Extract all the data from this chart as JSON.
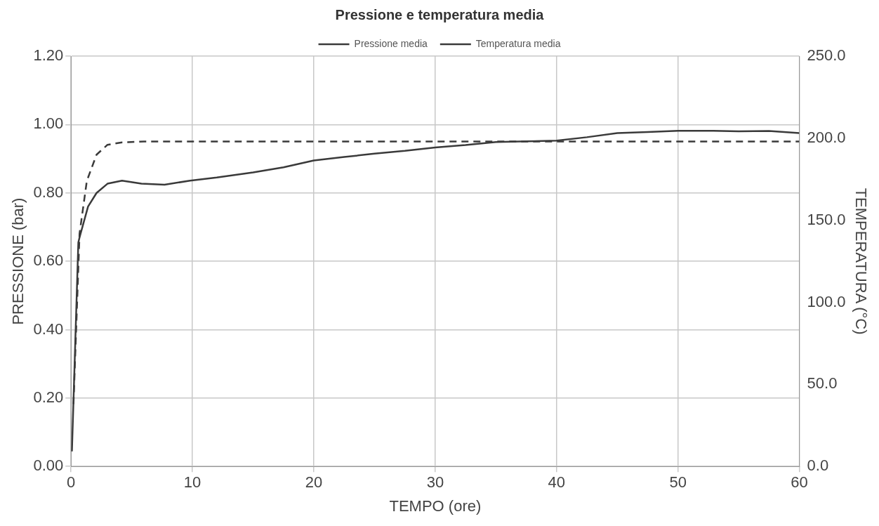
{
  "chart_data": {
    "type": "line",
    "title": "Pressione e temperatura media",
    "xlabel": "TEMPO (ore)",
    "ylabel": "PRESSIONE (bar)",
    "y2label": "TEMPERATURA (°C)",
    "legend": "top",
    "grid": true,
    "marker": "none",
    "xlim": [
      0,
      60
    ],
    "xticks": [
      0,
      10,
      20,
      30,
      40,
      50,
      60
    ],
    "ylim": [
      0,
      1.2
    ],
    "yticks": [
      {
        "value": 0,
        "label": "0.00"
      },
      {
        "value": 0.2,
        "label": "0.20"
      },
      {
        "value": 0.4,
        "label": "0.40"
      },
      {
        "value": 0.6,
        "label": "0.60"
      },
      {
        "value": 0.8,
        "label": "0.80"
      },
      {
        "value": 1,
        "label": "1.00"
      },
      {
        "value": 1.2,
        "label": "1.20"
      }
    ],
    "y2lim": [
      0,
      250
    ],
    "y2ticks": [
      {
        "value": 0,
        "label": "0.0"
      },
      {
        "value": 50,
        "label": "50.0"
      },
      {
        "value": 100,
        "label": "100.0"
      },
      {
        "value": 150,
        "label": "150.0"
      },
      {
        "value": 200,
        "label": "200.0"
      },
      {
        "value": 250,
        "label": "250.0"
      }
    ],
    "series": [
      {
        "name": "Pressione media",
        "color": "#3a3a3a",
        "line_style": "solid",
        "x": [
          0.07,
          0.6,
          0.7,
          1.4,
          2.1,
          3,
          4.2,
          5.8,
          7.7,
          9.8,
          12,
          15,
          17.5,
          20,
          22.5,
          25,
          27.5,
          30,
          32.5,
          35,
          37.5,
          40,
          42.5,
          45,
          47.5,
          50,
          52.5,
          55,
          57.5,
          60
        ],
        "values": [
          0.044,
          0.655,
          0.67,
          0.76,
          0.8,
          0.827,
          0.836,
          0.827,
          0.824,
          0.836,
          0.845,
          0.86,
          0.875,
          0.895,
          0.905,
          0.915,
          0.923,
          0.933,
          0.94,
          0.949,
          0.951,
          0.953,
          0.963,
          0.975,
          0.978,
          0.982,
          0.982,
          0.98,
          0.981,
          0.975
        ]
      },
      {
        "name": "Temperatura media",
        "color": "#3a3a3a",
        "line_style": "dashed",
        "axis": "y2",
        "x": [
          0.2,
          0.7,
          1.3,
          2.1,
          3,
          4.2,
          6,
          10,
          20,
          30,
          40,
          50,
          60
        ],
        "values": [
          38,
          142,
          174,
          190,
          196,
          197.5,
          198,
          198,
          198,
          198,
          198,
          198,
          198
        ]
      }
    ]
  }
}
